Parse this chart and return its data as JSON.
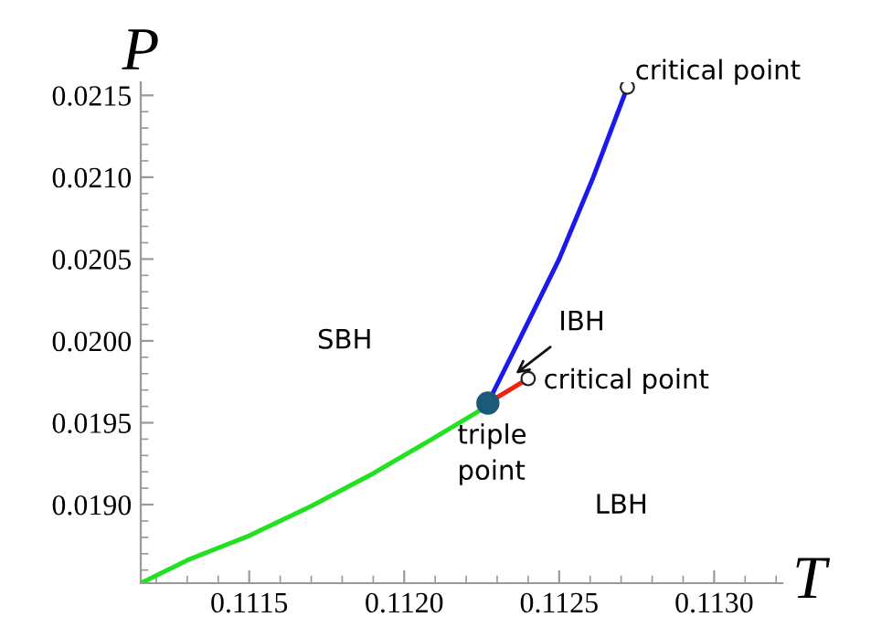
{
  "chart_data": {
    "type": "line",
    "xlabel": "T",
    "ylabel": "P",
    "xlim": [
      0.11115,
      0.11322
    ],
    "ylim": [
      0.01852,
      0.02158
    ],
    "xticks": [
      {
        "value": 0.1115,
        "label": "0.1115"
      },
      {
        "value": 0.112,
        "label": "0.1120"
      },
      {
        "value": 0.1125,
        "label": "0.1125"
      },
      {
        "value": 0.113,
        "label": "0.1130"
      }
    ],
    "yticks": [
      {
        "value": 0.019,
        "label": "0.0190"
      },
      {
        "value": 0.0195,
        "label": "0.0195"
      },
      {
        "value": 0.02,
        "label": "0.0200"
      },
      {
        "value": 0.0205,
        "label": "0.0205"
      },
      {
        "value": 0.021,
        "label": "0.0210"
      },
      {
        "value": 0.0215,
        "label": "0.0215"
      }
    ],
    "grid": false,
    "series": [
      {
        "color": "#22e022",
        "x": [
          0.11115,
          0.1113,
          0.1115,
          0.1117,
          0.11189,
          0.11209,
          0.11224,
          0.11227
        ],
        "values": [
          0.01852,
          0.01866,
          0.01881,
          0.01899,
          0.01918,
          0.0194,
          0.01957,
          0.01962
        ]
      },
      {
        "color": "#1a1aee",
        "x": [
          0.11227,
          0.11237,
          0.1125,
          0.11261,
          0.11267,
          0.11272
        ],
        "values": [
          0.01962,
          0.02,
          0.0205,
          0.021,
          0.0213,
          0.02155
        ]
      },
      {
        "color": "#ee2211",
        "x": [
          0.11227,
          0.1124
        ],
        "values": [
          0.01962,
          0.01977
        ]
      },
      {
        "type": "scatter",
        "color": "#ffffff",
        "x": [
          0.11272,
          0.1124
        ],
        "values": [
          0.02155,
          0.01977
        ]
      },
      {
        "type": "scatter",
        "color": "#1b5a78",
        "x": [
          0.11227
        ],
        "values": [
          0.01962
        ]
      }
    ],
    "annotations": [
      {
        "text": "critical point",
        "x": 0.11272,
        "y": 0.02155
      },
      {
        "text": "critical point",
        "x": 0.1124,
        "y": 0.01977
      },
      {
        "text": "triple\npoint",
        "x": 0.11227,
        "y": 0.01962
      },
      {
        "text": "IBH",
        "x": 0.11236,
        "y": 0.0198
      },
      "SBH",
      "LBH"
    ]
  }
}
